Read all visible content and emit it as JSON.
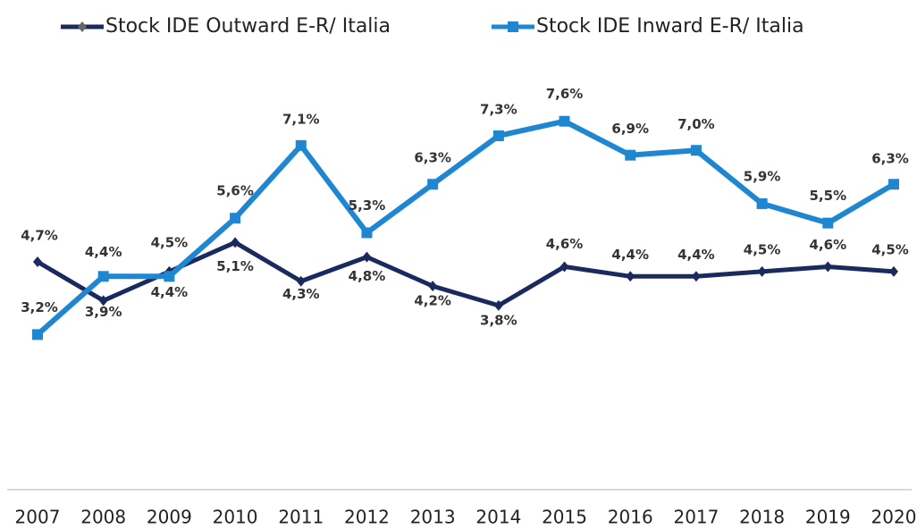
{
  "chart_data": {
    "type": "line",
    "categories": [
      "2007",
      "2008",
      "2009",
      "2010",
      "2011",
      "2012",
      "2013",
      "2014",
      "2015",
      "2016",
      "2017",
      "2018",
      "2019",
      "2020"
    ],
    "series": [
      {
        "name": "Stock IDE Outward E-R/ Italia",
        "color": "#1b2a5e",
        "marker": "diamond",
        "values": [
          4.7,
          3.9,
          4.5,
          5.1,
          4.3,
          4.8,
          4.2,
          3.8,
          4.6,
          4.4,
          4.4,
          4.5,
          4.6,
          4.5
        ],
        "value_labels": [
          "4,7%",
          "3,9%",
          "4,5%",
          "5,1%",
          "4,3%",
          "4,8%",
          "4,2%",
          "3,8%",
          "4,6%",
          "4,4%",
          "4,4%",
          "4,5%",
          "4,6%",
          "4,5%"
        ]
      },
      {
        "name": "Stock IDE Inward E-R/ Italia",
        "color": "#1f86d1",
        "marker": "square",
        "values": [
          3.2,
          4.4,
          4.4,
          5.6,
          7.1,
          5.3,
          6.3,
          7.3,
          7.6,
          6.9,
          7.0,
          5.9,
          5.5,
          6.3
        ],
        "value_labels": [
          "3,2%",
          "4,4%",
          "4,4%",
          "5,6%",
          "7,1%",
          "5,3%",
          "6,3%",
          "7,3%",
          "7,6%",
          "6,9%",
          "7,0%",
          "5,9%",
          "5,5%",
          "6,3%"
        ]
      }
    ],
    "ylim": [
      0,
      8
    ]
  }
}
